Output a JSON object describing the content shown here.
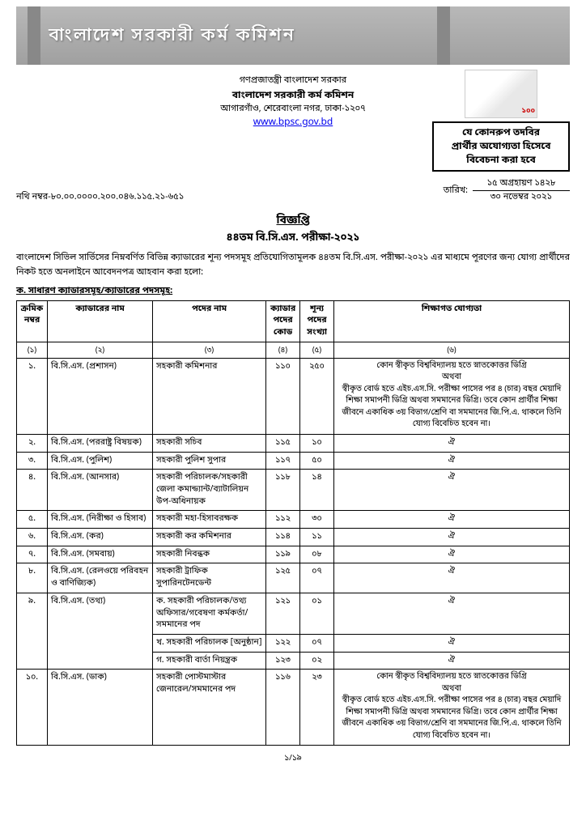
{
  "banner": {
    "text": "বাংলাদেশ সরকারী কর্ম কমিশন"
  },
  "header": {
    "gov": "গণপ্রজাতন্ত্রী বাংলাদেশ সরকার",
    "org": "বাংলাদেশ সরকারী কর্ম কমিশন",
    "addr": "আগারগাঁও, শেরেবাংলা নগর, ঢাকা-১২০৭",
    "url": "www.bpsc.gov.bd"
  },
  "mujib_badge": "১০০",
  "notice_box": {
    "l1": "যে কোনরুপ তদবির",
    "l2": "প্রার্থীর অযোগ্যতা হিসেবে",
    "l3": "বিবেচনা করা হবে"
  },
  "ref": {
    "label": "নথি নম্বর-৮০.০০.০০০০.২০০.০৪৬.১১৫.২১-৬৫১",
    "date_label": "তারিখ:",
    "date1": "১৫ অগ্রহায়ণ ১৪২৮",
    "date2": "৩০ নভেম্বর ২০২১"
  },
  "title": {
    "main": "বিজ্ঞপ্তি",
    "sub": "৪৪তম বি.সি.এস. পরীক্ষা-২০২১"
  },
  "intro": "বাংলাদেশ সিভিল সার্ভিসের নিম্নবর্ণিত বিভিন্ন ক্যাডারের শূন্য পদসমূহ প্রতিযোগিতামূলক ৪৪তম বি.সি.এস. পরীক্ষা-২০২১ এর মাধ্যমে পূরণের জন্য যোগ্য প্রার্থীদের নিকট হতে অনলাইনে আবেদনপত্র আহবান করা হলো:",
  "section_a": "ক. সাধারণ ক্যাডারসমূহ/ক্যাডারের পদসমূহ:",
  "columns": {
    "sl": "ক্রমিক\nনম্বর",
    "cadre": "ক্যাডারের নাম",
    "post": "পদের নাম",
    "code": "ক্যাডার\nপদের\nকোড",
    "vac": "শূন্য\nপদের\nসংখ্যা",
    "qual": "শিক্ষাগত যোগ্যতা"
  },
  "numrow": {
    "c1": "(১)",
    "c2": "(২)",
    "c3": "(৩)",
    "c4": "(৪)",
    "c5": "(৫)",
    "c6": "(৬)"
  },
  "qual_full": "কোন স্বীকৃত বিশ্ববিদ্যালয় হতে স্নাতকোত্তর ডিগ্রি\nঅথবা\nস্বীকৃত বোর্ড হতে এইচ.এস.সি. পরীক্ষা পাসের পর ৪ (চার) বছর মেয়াদি শিক্ষা সমাপনী ডিগ্রি অথবা সমমানের ডিগ্রি। তবে কোন প্রার্থীর শিক্ষা জীবনে একাধিক ৩য় বিভাগ/শ্রেণি বা সমমানের জি.পি.এ. থাকলে তিনি যোগ্য বিবেচিত হবেন না।",
  "ditto": "ঐ",
  "rows": [
    {
      "sl": "১.",
      "cadre": "বি.সি.এস. (প্রশাসন)",
      "post": "সহকারী কমিশনার",
      "code": "১১০",
      "vac": "২৫০",
      "qual": "full"
    },
    {
      "sl": "২.",
      "cadre": "বি.সি.এস. (পররাষ্ট্র বিষয়ক)",
      "post": "সহকারী সচিব",
      "code": "১১৫",
      "vac": "১০",
      "qual": "ditto"
    },
    {
      "sl": "৩.",
      "cadre": "বি.সি.এস. (পুলিশ)",
      "post": "সহকারী পুলিশ সুপার",
      "code": "১১৭",
      "vac": "৫০",
      "qual": "ditto"
    },
    {
      "sl": "৪.",
      "cadre": "বি.সি.এস. (আনসার)",
      "post": "সহকারী পরিচালক/সহকারী জেলা কমান্ড্যান্ট/ব্যাটালিয়ন উপ-অধিনায়ক",
      "code": "১১৮",
      "vac": "১৪",
      "qual": "ditto"
    },
    {
      "sl": "৫.",
      "cadre": "বি.সি.এস. (নিরীক্ষা ও হিসাব)",
      "post": "সহকারী মহা-হিসাবরক্ষক",
      "code": "১১২",
      "vac": "৩০",
      "qual": "ditto"
    },
    {
      "sl": "৬.",
      "cadre": "বি.সি.এস. (কর)",
      "post": "সহকারী কর কমিশনার",
      "code": "১১৪",
      "vac": "১১",
      "qual": "ditto"
    },
    {
      "sl": "৭.",
      "cadre": "বি.সি.এস. (সমবায়)",
      "post": "সহকারী নিবন্ধক",
      "code": "১১৯",
      "vac": "০৮",
      "qual": "ditto"
    },
    {
      "sl": "৮.",
      "cadre": "বি.সি.এস. (রেলওয়ে পরিবহন ও বাণিজ্যিক)",
      "post": "সহকারী ট্রাফিক সুপারিনটেনডেন্ট",
      "code": "১২৫",
      "vac": "০৭",
      "qual": "ditto"
    }
  ],
  "row9": {
    "sl": "৯.",
    "cadre": "বি.সি.এস. (তথ্য)",
    "sub": [
      {
        "post": "ক. সহকারী পরিচালক/তথ্য অফিসার/গবেষণা কর্মকর্তা/সমমানের পদ",
        "code": "১২১",
        "vac": "০১",
        "qual": "ditto"
      },
      {
        "post": "খ. সহকারী পরিচালক [অনুষ্ঠান]",
        "code": "১২২",
        "vac": "০৭",
        "qual": "ditto"
      },
      {
        "post": "গ. সহকারী বার্তা নিয়ন্ত্রক",
        "code": "১২৩",
        "vac": "০২",
        "qual": "ditto"
      }
    ]
  },
  "row10": {
    "sl": "১০.",
    "cadre": "বি.সি.এস. (ডাক)",
    "post": "সহকারী পোস্টমাস্টার জেনারেল/সমমানের পদ",
    "code": "১১৬",
    "vac": "২৩",
    "qual": "full"
  },
  "footer": "১/১৯"
}
